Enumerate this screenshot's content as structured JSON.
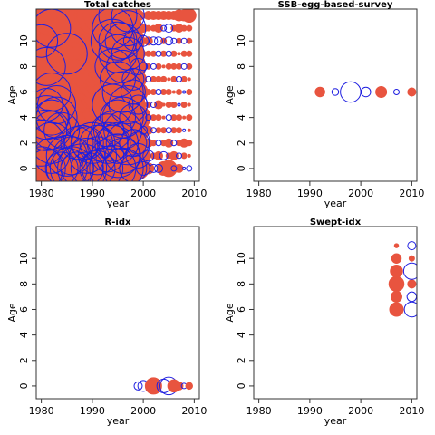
{
  "colors": {
    "positive": "#e8543f",
    "negative": "#1f1fe0",
    "frame": "#333333"
  },
  "chart_data": [
    {
      "type": "scatter",
      "chart_kind": "bubble-residuals",
      "title": "Total catches",
      "xlabel": "year",
      "ylabel": "Age",
      "xlim": [
        1979,
        2011
      ],
      "ylim": [
        -1,
        12.5
      ],
      "xticks": [
        1980,
        1990,
        2000,
        2010
      ],
      "yticks": [
        0,
        2,
        4,
        6,
        8,
        10
      ],
      "years": [
        1980,
        1981,
        1982,
        1983,
        1984,
        1985,
        1986,
        1987,
        1988,
        1989,
        1990,
        1991,
        1992,
        1993,
        1994,
        1995,
        1996,
        1997,
        1998,
        1999,
        2000,
        2001,
        2002,
        2003,
        2004,
        2005,
        2006,
        2007,
        2008,
        2009
      ],
      "ages": [
        0,
        1,
        2,
        3,
        4,
        5,
        6,
        7,
        8,
        9,
        10,
        11,
        12
      ],
      "residual_matrix_by_age": [
        [
          -1.6,
          -1.4,
          1.3,
          1.8,
          -1.2,
          -1.5,
          -1.6,
          -1.2,
          -1.8,
          -1.2,
          1.6,
          -1.3,
          -1.5,
          1.4,
          -1.7,
          1.5,
          -1.5,
          1.2,
          -1.0,
          0.8,
          -0.5,
          0.4,
          -0.3,
          -0.3,
          0.5,
          0.6,
          -0.2,
          0.3,
          -0.1,
          -0.2
        ],
        [
          1.4,
          1.7,
          -1.3,
          1.6,
          1.5,
          -1.5,
          -1.4,
          1.7,
          1.2,
          -1.3,
          1.5,
          -1.4,
          1.6,
          -1.2,
          1.5,
          -1.6,
          -1.3,
          1.4,
          1.1,
          -0.9,
          0.5,
          -0.4,
          0.2,
          0.3,
          -0.3,
          0.2,
          0.3,
          -0.2,
          0.2,
          0.1
        ],
        [
          -1.7,
          1.4,
          -1.5,
          1.5,
          1.2,
          1.5,
          1.3,
          -1.2,
          -1.3,
          -1.2,
          -1.5,
          -1.3,
          1.2,
          -1.5,
          -1.3,
          -1.5,
          1.4,
          -1.6,
          -1.0,
          -0.8,
          0.4,
          0.3,
          0.2,
          -0.2,
          0.2,
          0.3,
          -0.2,
          0.2,
          0.3,
          0.2
        ],
        [
          1.2,
          -1.5,
          -1.4,
          1.4,
          -1.3,
          1.5,
          1.3,
          1.2,
          1.5,
          1.4,
          1.4,
          1.3,
          1.5,
          -1.2,
          -1.4,
          1.6,
          -1.4,
          1.3,
          0.9,
          0.8,
          -0.3,
          0.3,
          -0.2,
          0.2,
          0.2,
          -0.2,
          0.2,
          0.2,
          -0.1,
          0.1
        ],
        [
          1.5,
          -1.6,
          -1.3,
          -1.5,
          1.4,
          1.2,
          1.5,
          1.3,
          1.4,
          1.5,
          1.3,
          1.4,
          1.3,
          1.4,
          1.5,
          -1.3,
          -1.5,
          1.4,
          -1.0,
          0.9,
          0.3,
          -0.2,
          0.2,
          0.2,
          0.1,
          -0.2,
          0.2,
          0.2,
          0.1,
          0.2
        ],
        [
          1.3,
          -1.2,
          1.5,
          -1.4,
          1.6,
          1.3,
          1.4,
          1.5,
          1.2,
          1.3,
          1.4,
          1.3,
          1.6,
          1.4,
          -1.5,
          1.5,
          1.3,
          -1.4,
          0.9,
          -0.7,
          0.2,
          0.2,
          -0.2,
          0.3,
          0.1,
          0.2,
          0.2,
          -0.1,
          0.2,
          0.1
        ],
        [
          1.4,
          1.5,
          -1.4,
          1.3,
          1.4,
          1.3,
          1.4,
          1.2,
          1.5,
          1.3,
          1.4,
          1.4,
          1.5,
          1.3,
          1.4,
          1.2,
          -1.5,
          1.3,
          -0.9,
          0.7,
          0.3,
          0.2,
          0.2,
          -0.2,
          0.2,
          0.2,
          0.1,
          0.2,
          -0.1,
          0.2
        ],
        [
          1.5,
          1.3,
          1.4,
          1.5,
          1.3,
          1.4,
          1.3,
          1.5,
          1.4,
          1.2,
          1.3,
          1.5,
          1.4,
          1.3,
          1.5,
          -1.3,
          1.4,
          1.2,
          -0.8,
          0.6,
          0.2,
          -0.2,
          0.2,
          0.2,
          0.2,
          0.1,
          0.2,
          -0.2,
          0.2,
          0.1
        ],
        [
          1.3,
          -1.4,
          1.5,
          1.3,
          1.4,
          1.2,
          1.5,
          1.4,
          1.3,
          1.5,
          1.4,
          1.3,
          1.2,
          1.4,
          -1.3,
          1.4,
          -1.2,
          1.3,
          0.8,
          -0.6,
          -0.3,
          0.2,
          -0.2,
          0.2,
          0.1,
          0.2,
          0.2,
          0.2,
          -0.2,
          0.2
        ],
        [
          1.4,
          1.3,
          1.5,
          1.4,
          1.3,
          -1.5,
          1.4,
          1.3,
          1.5,
          1.4,
          1.3,
          1.2,
          1.4,
          1.5,
          1.3,
          -1.4,
          1.3,
          -1.2,
          0.7,
          0.5,
          0.2,
          0.2,
          0.2,
          -0.2,
          0.2,
          -0.2,
          0.2,
          0.1,
          0.2,
          0.2
        ],
        [
          -1.2,
          1.4,
          1.3,
          1.5,
          1.4,
          1.3,
          1.2,
          1.4,
          1.3,
          1.5,
          1.4,
          1.3,
          1.5,
          1.4,
          -1.6,
          -1.4,
          -1.3,
          1.2,
          -0.7,
          0.5,
          -0.4,
          0.3,
          -0.3,
          -0.3,
          0.2,
          -0.3,
          -0.2,
          0.2,
          -0.2,
          0.2
        ],
        [
          1.3,
          1.5,
          -1.4,
          1.3,
          1.4,
          1.5,
          1.3,
          1.4,
          1.2,
          1.3,
          1.5,
          1.4,
          1.3,
          1.2,
          -1.5,
          1.3,
          1.4,
          -1.3,
          0.6,
          0.4,
          0.3,
          0.2,
          0.2,
          0.3,
          -0.2,
          -0.3,
          0.2,
          0.3,
          0.2,
          0.2
        ],
        [
          1.4,
          1.3,
          1.5,
          1.4,
          1.3,
          1.2,
          1.4,
          1.5,
          1.3,
          1.4,
          1.3,
          1.5,
          1.4,
          1.3,
          1.2,
          -1.4,
          1.3,
          -1.2,
          0.5,
          0.4,
          0.2,
          0.3,
          0.3,
          0.3,
          0.3,
          0.3,
          0.3,
          0.4,
          0.4,
          0.5
        ]
      ]
    },
    {
      "type": "scatter",
      "chart_kind": "bubble-residuals",
      "title": "SSB-egg-based-survey",
      "xlabel": "year",
      "ylabel": "Age",
      "xlim": [
        1979,
        2011
      ],
      "ylim": [
        -1,
        12.5
      ],
      "xticks": [
        1980,
        1990,
        2000,
        2010
      ],
      "yticks": [
        0,
        2,
        4,
        6,
        8,
        10
      ],
      "points": [
        {
          "year": 1992,
          "age": 6,
          "residual": 0.35
        },
        {
          "year": 1995,
          "age": 6,
          "residual": -0.25
        },
        {
          "year": 1998,
          "age": 6,
          "residual": -0.75
        },
        {
          "year": 2001,
          "age": 6,
          "residual": -0.35
        },
        {
          "year": 2004,
          "age": 6,
          "residual": 0.4
        },
        {
          "year": 2007,
          "age": 6,
          "residual": -0.2
        },
        {
          "year": 2010,
          "age": 6,
          "residual": 0.3
        }
      ]
    },
    {
      "type": "scatter",
      "chart_kind": "bubble-residuals",
      "title": "R-idx",
      "xlabel": "year",
      "ylabel": "Age",
      "xlim": [
        1979,
        2011
      ],
      "ylim": [
        -1,
        12.5
      ],
      "xticks": [
        1980,
        1990,
        2000,
        2010
      ],
      "yticks": [
        0,
        2,
        4,
        6,
        8,
        10
      ],
      "points": [
        {
          "year": 1999,
          "age": 0,
          "residual": -0.3
        },
        {
          "year": 2000,
          "age": 0,
          "residual": -0.4
        },
        {
          "year": 2002,
          "age": 0,
          "residual": 0.6
        },
        {
          "year": 2004,
          "age": 0,
          "residual": -0.5
        },
        {
          "year": 2005,
          "age": 0,
          "residual": -0.65
        },
        {
          "year": 2006,
          "age": 0,
          "residual": 0.45
        },
        {
          "year": 2007,
          "age": 0,
          "residual": 0.3
        },
        {
          "year": 2008,
          "age": 0,
          "residual": -0.2
        },
        {
          "year": 2009,
          "age": 0,
          "residual": 0.25
        }
      ]
    },
    {
      "type": "scatter",
      "chart_kind": "bubble-residuals",
      "title": "Swept-idx",
      "xlabel": "year",
      "ylabel": "Age",
      "xlim": [
        1979,
        2011
      ],
      "ylim": [
        -1,
        12.5
      ],
      "xticks": [
        1980,
        1990,
        2000,
        2010
      ],
      "yticks": [
        0,
        2,
        4,
        6,
        8,
        10
      ],
      "points": [
        {
          "year": 2007,
          "age": 6,
          "residual": 0.5
        },
        {
          "year": 2007,
          "age": 7,
          "residual": 0.4
        },
        {
          "year": 2007,
          "age": 8,
          "residual": 0.55
        },
        {
          "year": 2007,
          "age": 9,
          "residual": 0.45
        },
        {
          "year": 2007,
          "age": 10,
          "residual": 0.35
        },
        {
          "year": 2007,
          "age": 11,
          "residual": 0.15
        },
        {
          "year": 2010,
          "age": 6,
          "residual": -0.55
        },
        {
          "year": 2010,
          "age": 7,
          "residual": -0.35
        },
        {
          "year": 2010,
          "age": 8,
          "residual": 0.3
        },
        {
          "year": 2010,
          "age": 9,
          "residual": -0.6
        },
        {
          "year": 2010,
          "age": 10,
          "residual": 0.2
        },
        {
          "year": 2010,
          "age": 11,
          "residual": -0.3
        }
      ]
    }
  ]
}
